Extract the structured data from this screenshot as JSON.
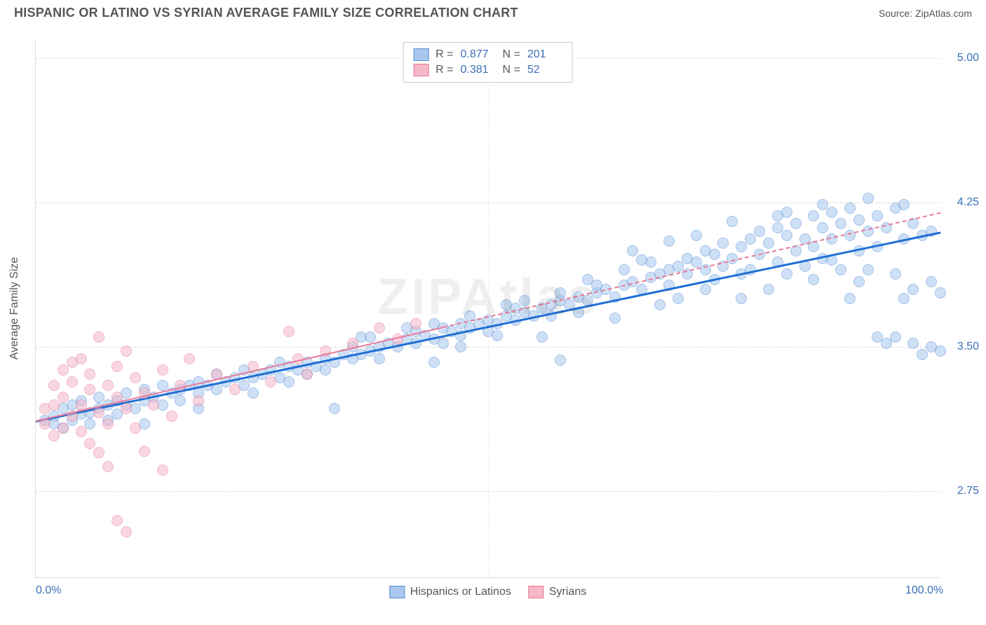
{
  "title": "HISPANIC OR LATINO VS SYRIAN AVERAGE FAMILY SIZE CORRELATION CHART",
  "source": "Source: ZipAtlas.com",
  "watermark": "ZIPAtlas",
  "ylabel": "Average Family Size",
  "chart": {
    "type": "scatter",
    "xlim": [
      0,
      100
    ],
    "ylim": [
      2.3,
      5.1
    ],
    "yticks": [
      2.75,
      3.5,
      4.25,
      5.0
    ],
    "ytick_labels": [
      "2.75",
      "3.50",
      "4.25",
      "5.00"
    ],
    "xticks": [
      0,
      50,
      100
    ],
    "xtick_labels": [
      "0.0%",
      "",
      "100.0%"
    ],
    "grid_color": "#dddddd",
    "background_color": "#ffffff",
    "dot_radius": 8,
    "dot_opacity": 0.55,
    "series": [
      {
        "name": "Hispanics or Latinos",
        "fill": "#a7c7ee",
        "stroke": "#5a8fd6",
        "trend_color": "#1f6fd4",
        "trend_dash": "solid",
        "trend_width": 3,
        "R": "0.877",
        "N": "201",
        "trend": {
          "x1": 0,
          "y1": 3.12,
          "x2": 100,
          "y2": 4.1
        },
        "points": [
          [
            1,
            3.12
          ],
          [
            2,
            3.14
          ],
          [
            2,
            3.1
          ],
          [
            3,
            3.18
          ],
          [
            3,
            3.08
          ],
          [
            4,
            3.12
          ],
          [
            4,
            3.2
          ],
          [
            5,
            3.15
          ],
          [
            5,
            3.22
          ],
          [
            6,
            3.1
          ],
          [
            6,
            3.16
          ],
          [
            7,
            3.18
          ],
          [
            7,
            3.24
          ],
          [
            8,
            3.12
          ],
          [
            8,
            3.2
          ],
          [
            9,
            3.22
          ],
          [
            9,
            3.15
          ],
          [
            10,
            3.2
          ],
          [
            10,
            3.26
          ],
          [
            11,
            3.18
          ],
          [
            12,
            3.22
          ],
          [
            12,
            3.28
          ],
          [
            13,
            3.24
          ],
          [
            14,
            3.2
          ],
          [
            14,
            3.3
          ],
          [
            15,
            3.26
          ],
          [
            16,
            3.28
          ],
          [
            16,
            3.22
          ],
          [
            17,
            3.3
          ],
          [
            18,
            3.26
          ],
          [
            18,
            3.32
          ],
          [
            19,
            3.3
          ],
          [
            20,
            3.28
          ],
          [
            20,
            3.36
          ],
          [
            21,
            3.32
          ],
          [
            22,
            3.34
          ],
          [
            23,
            3.3
          ],
          [
            23,
            3.38
          ],
          [
            24,
            3.34
          ],
          [
            25,
            3.36
          ],
          [
            26,
            3.38
          ],
          [
            27,
            3.34
          ],
          [
            27,
            3.42
          ],
          [
            28,
            3.4
          ],
          [
            29,
            3.38
          ],
          [
            30,
            3.42
          ],
          [
            30,
            3.36
          ],
          [
            31,
            3.4
          ],
          [
            32,
            3.44
          ],
          [
            32,
            3.38
          ],
          [
            33,
            3.42
          ],
          [
            34,
            3.46
          ],
          [
            35,
            3.44
          ],
          [
            35,
            3.5
          ],
          [
            36,
            3.46
          ],
          [
            37,
            3.48
          ],
          [
            38,
            3.5
          ],
          [
            38,
            3.44
          ],
          [
            39,
            3.52
          ],
          [
            40,
            3.5
          ],
          [
            41,
            3.54
          ],
          [
            42,
            3.52
          ],
          [
            42,
            3.58
          ],
          [
            43,
            3.56
          ],
          [
            44,
            3.54
          ],
          [
            45,
            3.6
          ],
          [
            45,
            3.52
          ],
          [
            46,
            3.58
          ],
          [
            47,
            3.56
          ],
          [
            47,
            3.62
          ],
          [
            48,
            3.6
          ],
          [
            49,
            3.62
          ],
          [
            50,
            3.58
          ],
          [
            50,
            3.64
          ],
          [
            51,
            3.62
          ],
          [
            52,
            3.66
          ],
          [
            53,
            3.64
          ],
          [
            53,
            3.7
          ],
          [
            54,
            3.68
          ],
          [
            55,
            3.66
          ],
          [
            56,
            3.7
          ],
          [
            57,
            3.72
          ],
          [
            57,
            3.66
          ],
          [
            58,
            3.43
          ],
          [
            58,
            3.74
          ],
          [
            59,
            3.72
          ],
          [
            60,
            3.76
          ],
          [
            61,
            3.74
          ],
          [
            62,
            3.78
          ],
          [
            62,
            3.82
          ],
          [
            63,
            3.8
          ],
          [
            64,
            3.76
          ],
          [
            65,
            3.82
          ],
          [
            65,
            3.9
          ],
          [
            66,
            3.84
          ],
          [
            67,
            3.8
          ],
          [
            68,
            3.86
          ],
          [
            68,
            3.94
          ],
          [
            69,
            3.88
          ],
          [
            70,
            3.9
          ],
          [
            70,
            3.82
          ],
          [
            71,
            3.92
          ],
          [
            72,
            3.96
          ],
          [
            72,
            3.88
          ],
          [
            73,
            3.94
          ],
          [
            74,
            4.0
          ],
          [
            74,
            3.9
          ],
          [
            75,
            3.98
          ],
          [
            76,
            3.92
          ],
          [
            76,
            4.04
          ],
          [
            77,
            3.96
          ],
          [
            78,
            4.02
          ],
          [
            78,
            3.88
          ],
          [
            79,
            4.06
          ],
          [
            80,
            3.98
          ],
          [
            80,
            4.1
          ],
          [
            81,
            4.04
          ],
          [
            82,
            3.94
          ],
          [
            82,
            4.12
          ],
          [
            83,
            4.08
          ],
          [
            83,
            4.2
          ],
          [
            84,
            4.0
          ],
          [
            84,
            4.14
          ],
          [
            85,
            4.06
          ],
          [
            85,
            3.92
          ],
          [
            86,
            4.18
          ],
          [
            86,
            4.02
          ],
          [
            87,
            4.12
          ],
          [
            87,
            3.96
          ],
          [
            88,
            4.2
          ],
          [
            88,
            4.06
          ],
          [
            89,
            4.14
          ],
          [
            89,
            3.9
          ],
          [
            90,
            4.22
          ],
          [
            90,
            4.08
          ],
          [
            91,
            4.16
          ],
          [
            91,
            3.84
          ],
          [
            92,
            4.1
          ],
          [
            92,
            4.27
          ],
          [
            93,
            4.02
          ],
          [
            93,
            4.18
          ],
          [
            94,
            3.52
          ],
          [
            94,
            4.12
          ],
          [
            95,
            4.22
          ],
          [
            95,
            3.88
          ],
          [
            96,
            4.06
          ],
          [
            96,
            4.24
          ],
          [
            97,
            3.8
          ],
          [
            97,
            4.14
          ],
          [
            98,
            4.08
          ],
          [
            98,
            3.46
          ],
          [
            99,
            3.84
          ],
          [
            99,
            4.1
          ],
          [
            100,
            3.78
          ],
          [
            100,
            3.48
          ],
          [
            33,
            3.18
          ],
          [
            36,
            3.55
          ],
          [
            44,
            3.62
          ],
          [
            51,
            3.56
          ],
          [
            58,
            3.78
          ],
          [
            64,
            3.65
          ],
          [
            69,
            3.72
          ],
          [
            73,
            4.08
          ],
          [
            77,
            4.15
          ],
          [
            81,
            3.8
          ],
          [
            87,
            4.24
          ],
          [
            91,
            4.0
          ],
          [
            95,
            3.55
          ],
          [
            97,
            3.52
          ],
          [
            99,
            3.5
          ],
          [
            52,
            3.72
          ],
          [
            56,
            3.55
          ],
          [
            60,
            3.68
          ],
          [
            66,
            4.0
          ],
          [
            70,
            4.05
          ],
          [
            74,
            3.8
          ],
          [
            78,
            3.75
          ],
          [
            82,
            4.18
          ],
          [
            86,
            3.85
          ],
          [
            90,
            3.75
          ],
          [
            93,
            3.55
          ],
          [
            96,
            3.75
          ],
          [
            12,
            3.1
          ],
          [
            18,
            3.18
          ],
          [
            24,
            3.26
          ],
          [
            28,
            3.32
          ],
          [
            48,
            3.66
          ],
          [
            54,
            3.74
          ],
          [
            61,
            3.85
          ],
          [
            67,
            3.95
          ],
          [
            71,
            3.75
          ],
          [
            75,
            3.85
          ],
          [
            79,
            3.9
          ],
          [
            83,
            3.88
          ],
          [
            88,
            3.95
          ],
          [
            92,
            3.9
          ],
          [
            44,
            3.42
          ],
          [
            37,
            3.55
          ],
          [
            41,
            3.6
          ],
          [
            47,
            3.5
          ]
        ]
      },
      {
        "name": "Syrians",
        "fill": "#f5b8c8",
        "stroke": "#e77a9a",
        "trend_color": "#e77a9a",
        "trend_dash": "dashed",
        "trend_width": 2,
        "R": "0.381",
        "N": "52",
        "trend": {
          "x1": 0,
          "y1": 3.12,
          "x2": 100,
          "y2": 4.2
        },
        "solid_until_x": 45,
        "points": [
          [
            1,
            3.1
          ],
          [
            1,
            3.18
          ],
          [
            2,
            3.04
          ],
          [
            2,
            3.2
          ],
          [
            2,
            3.3
          ],
          [
            3,
            3.08
          ],
          [
            3,
            3.24
          ],
          [
            3,
            3.38
          ],
          [
            4,
            3.14
          ],
          [
            4,
            3.32
          ],
          [
            4,
            3.42
          ],
          [
            5,
            3.06
          ],
          [
            5,
            3.2
          ],
          [
            5,
            3.44
          ],
          [
            6,
            3.0
          ],
          [
            6,
            3.28
          ],
          [
            6,
            3.36
          ],
          [
            7,
            3.55
          ],
          [
            7,
            3.16
          ],
          [
            7,
            2.95
          ],
          [
            8,
            3.1
          ],
          [
            8,
            3.3
          ],
          [
            8,
            2.88
          ],
          [
            9,
            3.24
          ],
          [
            9,
            3.4
          ],
          [
            9,
            2.6
          ],
          [
            10,
            3.18
          ],
          [
            10,
            3.48
          ],
          [
            10,
            2.54
          ],
          [
            11,
            3.08
          ],
          [
            11,
            3.34
          ],
          [
            12,
            3.26
          ],
          [
            12,
            2.96
          ],
          [
            13,
            3.2
          ],
          [
            14,
            3.38
          ],
          [
            14,
            2.86
          ],
          [
            15,
            3.14
          ],
          [
            16,
            3.3
          ],
          [
            17,
            3.44
          ],
          [
            18,
            3.22
          ],
          [
            20,
            3.36
          ],
          [
            22,
            3.28
          ],
          [
            24,
            3.4
          ],
          [
            26,
            3.32
          ],
          [
            28,
            3.58
          ],
          [
            29,
            3.44
          ],
          [
            30,
            3.36
          ],
          [
            32,
            3.48
          ],
          [
            35,
            3.52
          ],
          [
            38,
            3.6
          ],
          [
            40,
            3.54
          ],
          [
            42,
            3.62
          ]
        ]
      }
    ]
  },
  "legend": {
    "series1_label": "Hispanics or Latinos",
    "series2_label": "Syrians"
  },
  "stats_labels": {
    "R": "R =",
    "N": "N ="
  }
}
